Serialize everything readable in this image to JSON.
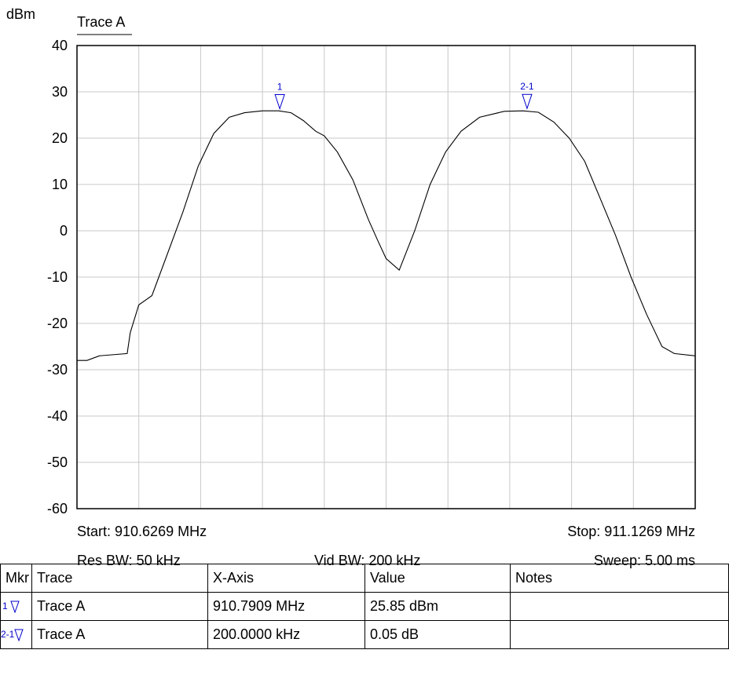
{
  "chart_data": {
    "type": "line",
    "title": "Trace A",
    "ylabel": "dBm",
    "ylim": [
      -60,
      40
    ],
    "yticks": [
      40,
      30,
      20,
      10,
      0,
      -10,
      -20,
      -30,
      -40,
      -50,
      -60
    ],
    "xlim_mhz": [
      910.6269,
      911.1269
    ],
    "grid": true,
    "series": [
      {
        "name": "Trace A",
        "x_mhz": [
          910.6269,
          910.635,
          910.645,
          910.6675,
          910.67,
          910.6769,
          910.6875,
          910.7,
          910.7125,
          910.725,
          910.7375,
          910.75,
          910.7625,
          910.7769,
          910.79,
          910.8,
          910.81,
          910.82,
          910.8269,
          910.8375,
          910.85,
          910.8625,
          910.87,
          910.8769,
          910.8875,
          910.9,
          910.9125,
          910.925,
          910.9375,
          910.9525,
          910.9725,
          910.9875,
          911.0,
          911.0125,
          911.025,
          911.0375,
          911.05,
          911.0625,
          911.075,
          911.0875,
          911.1,
          911.11,
          911.1269
        ],
        "y_dbm": [
          -28,
          -28,
          -27,
          -26.5,
          -22,
          -16,
          -14,
          -5,
          4,
          14,
          21,
          24.5,
          25.5,
          25.9,
          25.9,
          25.5,
          23.8,
          21.5,
          20.5,
          17,
          11,
          2.5,
          -2,
          -6,
          -8.5,
          0,
          10,
          17,
          21.5,
          24.5,
          25.8,
          25.9,
          25.6,
          23.5,
          20,
          15,
          7,
          -1,
          -10,
          -18,
          -25,
          -26.5,
          -27
        ]
      }
    ],
    "markers": [
      {
        "id": "1",
        "x_mhz": 910.7909,
        "y_dbm": 25.85
      },
      {
        "id": "2-1",
        "x_mhz": 910.9909,
        "y_dbm": 25.9
      }
    ]
  },
  "info": {
    "start": "Start: 910.6269 MHz",
    "stop": "Stop: 911.1269 MHz",
    "res_bw": "Res BW: 50 kHz",
    "vid_bw": "Vid BW: 200 kHz",
    "sweep": "Sweep: 5.00 ms"
  },
  "table": {
    "headers": [
      "Mkr",
      "Trace",
      "X-Axis",
      "Value",
      "Notes"
    ],
    "rows": [
      {
        "mkr": "1",
        "trace": "Trace A",
        "x_axis": "910.7909 MHz",
        "value": "25.85 dBm",
        "notes": ""
      },
      {
        "mkr": "2-1",
        "trace": "Trace A",
        "x_axis": "200.0000 kHz",
        "value": "0.05 dB",
        "notes": ""
      }
    ]
  },
  "colors": {
    "trace": "#000000",
    "marker": "#0000cc",
    "grid": "#c8c8c8"
  }
}
